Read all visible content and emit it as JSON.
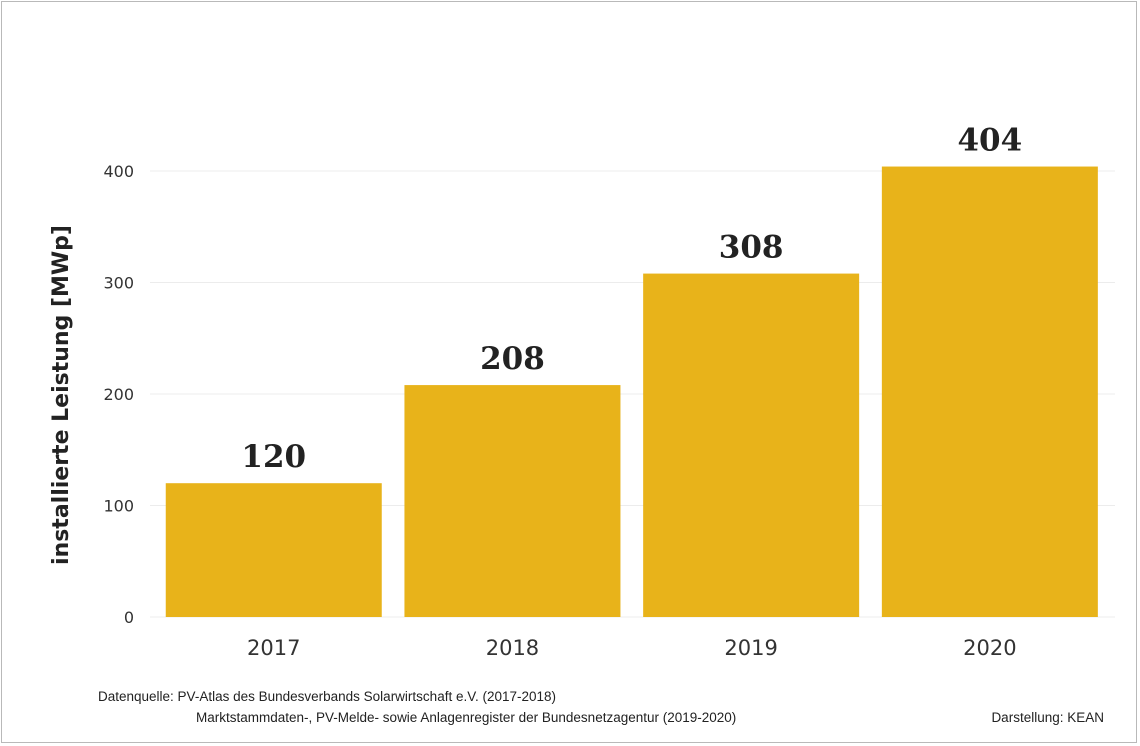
{
  "chart_data": {
    "type": "bar",
    "categories": [
      "2017",
      "2018",
      "2019",
      "2020"
    ],
    "values": [
      120,
      208,
      308,
      404
    ],
    "data_labels": [
      "120",
      "208",
      "308",
      "404"
    ],
    "ylabel": "installierte Leistung [MWp]",
    "xlabel": "",
    "ylim": [
      0,
      400
    ],
    "yticks": [
      "0",
      "100",
      "200",
      "300",
      "400"
    ],
    "grid": true,
    "bar_color": "#E8B31A",
    "grid_color": "#ececec"
  },
  "footer": {
    "source_line1": "Datenquelle: PV-Atlas des Bundesverbands Solarwirtschaft e.V. (2017-2018)",
    "source_line2": "Marktstammdaten-,  PV-Melde- sowie Anlagenregister der Bundesnetzagentur (2019-2020)",
    "credit": "Darstellung: KEAN"
  }
}
